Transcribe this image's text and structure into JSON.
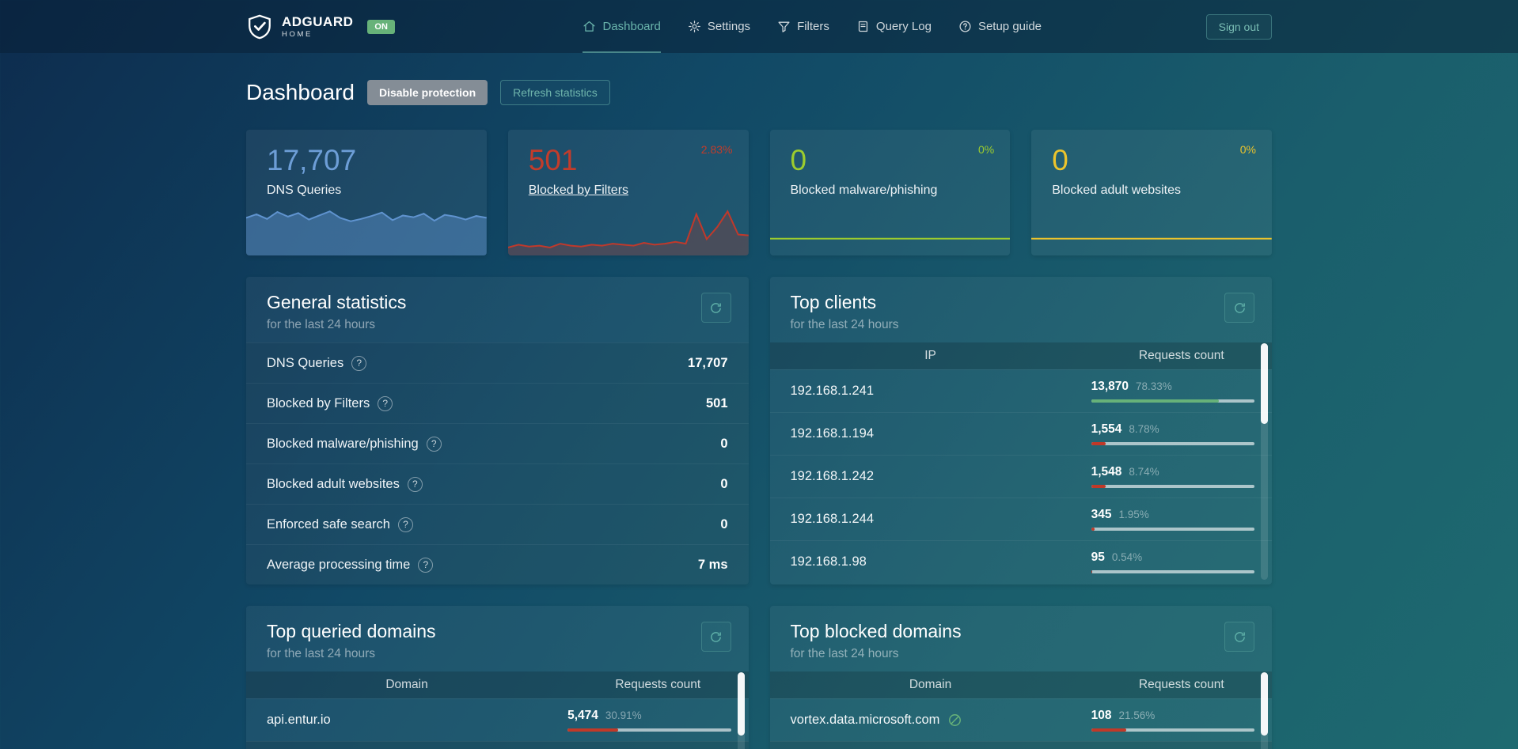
{
  "ui": {
    "help_glyph": "?"
  },
  "colors": {
    "accent": "#66b1ab",
    "green": "#67b279",
    "red": "#c13928"
  },
  "navbar": {
    "brand": {
      "name": "ADGUARD",
      "sub": "HOME",
      "status": "ON"
    },
    "items": [
      {
        "label": "Dashboard"
      },
      {
        "label": "Settings"
      },
      {
        "label": "Filters"
      },
      {
        "label": "Query Log"
      },
      {
        "label": "Setup guide"
      }
    ],
    "sign_out": "Sign out"
  },
  "page": {
    "title": "Dashboard",
    "disable_protection": "Disable protection",
    "refresh_statistics": "Refresh statistics"
  },
  "stat_cards": [
    {
      "value": "17,707",
      "label": "DNS Queries",
      "value_color": "#6d9ed7",
      "line_color": "#5f93cf",
      "fill_color": "rgba(95,147,207,0.45)",
      "chart": [
        60,
        66,
        58,
        70,
        62,
        68,
        57,
        64,
        71,
        60,
        54,
        58,
        63,
        69,
        56,
        64,
        61,
        67,
        55,
        65,
        62,
        57,
        63,
        60
      ]
    },
    {
      "value": "501",
      "label": "Blocked by Filters",
      "percent": "2.83%",
      "value_color": "#c23c2b",
      "percent_color": "#c23c2b",
      "line_color": "#c0392b",
      "fill_color": "rgba(150,60,55,0.35)",
      "chart": [
        6,
        9,
        7,
        8,
        6,
        10,
        8,
        7,
        9,
        8,
        10,
        9,
        8,
        11,
        9,
        10,
        12,
        10,
        42,
        15,
        28,
        45,
        20,
        19
      ]
    },
    {
      "value": "0",
      "label": "Blocked malware/phishing",
      "percent": "0%",
      "value_color": "#9ccc2e",
      "percent_color": "#9ccc2e",
      "line_color": "#9ccc2e",
      "fill_color": "",
      "chart": [
        0,
        0,
        0,
        0,
        0,
        0,
        0,
        0,
        0,
        0,
        0,
        0,
        0,
        0,
        0,
        0,
        0,
        0,
        0,
        0,
        0,
        0,
        0,
        0
      ]
    },
    {
      "value": "0",
      "label": "Blocked adult websites",
      "percent": "0%",
      "value_color": "#ecc42c",
      "percent_color": "#ecc42c",
      "line_color": "#ecc42c",
      "fill_color": "",
      "chart": [
        0,
        0,
        0,
        0,
        0,
        0,
        0,
        0,
        0,
        0,
        0,
        0,
        0,
        0,
        0,
        0,
        0,
        0,
        0,
        0,
        0,
        0,
        0,
        0
      ]
    }
  ],
  "general_stats": {
    "title": "General statistics",
    "subtitle": "for the last 24 hours",
    "rows": [
      {
        "label": "DNS Queries",
        "value": "17,707"
      },
      {
        "label": "Blocked by Filters",
        "value": "501"
      },
      {
        "label": "Blocked malware/phishing",
        "value": "0"
      },
      {
        "label": "Blocked adult websites",
        "value": "0"
      },
      {
        "label": "Enforced safe search",
        "value": "0"
      },
      {
        "label": "Average processing time",
        "value": "7 ms"
      }
    ]
  },
  "top_clients": {
    "title": "Top clients",
    "subtitle": "for the last 24 hours",
    "col_ip": "IP",
    "col_count": "Requests count",
    "rows": [
      {
        "ip": "192.168.1.241",
        "count": "13,870",
        "percent": "78.33%",
        "bar": 78.33,
        "bar_color": "green"
      },
      {
        "ip": "192.168.1.194",
        "count": "1,554",
        "percent": "8.78%",
        "bar": 8.78,
        "bar_color": "red"
      },
      {
        "ip": "192.168.1.242",
        "count": "1,548",
        "percent": "8.74%",
        "bar": 8.74,
        "bar_color": "red"
      },
      {
        "ip": "192.168.1.244",
        "count": "345",
        "percent": "1.95%",
        "bar": 1.95,
        "bar_color": "red"
      },
      {
        "ip": "192.168.1.98",
        "count": "95",
        "percent": "0.54%",
        "bar": 0.54,
        "bar_color": "red"
      }
    ]
  },
  "top_queried": {
    "title": "Top queried domains",
    "subtitle": "for the last 24 hours",
    "col_domain": "Domain",
    "col_count": "Requests count",
    "rows": [
      {
        "domain": "api.entur.io",
        "count": "5,474",
        "percent": "30.91%",
        "bar": 30.91,
        "bar_color": "red"
      }
    ]
  },
  "top_blocked": {
    "title": "Top blocked domains",
    "subtitle": "for the last 24 hours",
    "col_domain": "Domain",
    "col_count": "Requests count",
    "rows": [
      {
        "domain": "vortex.data.microsoft.com",
        "count": "108",
        "percent": "21.56%",
        "bar": 21.56,
        "bar_color": "red",
        "tracker": true
      }
    ]
  }
}
